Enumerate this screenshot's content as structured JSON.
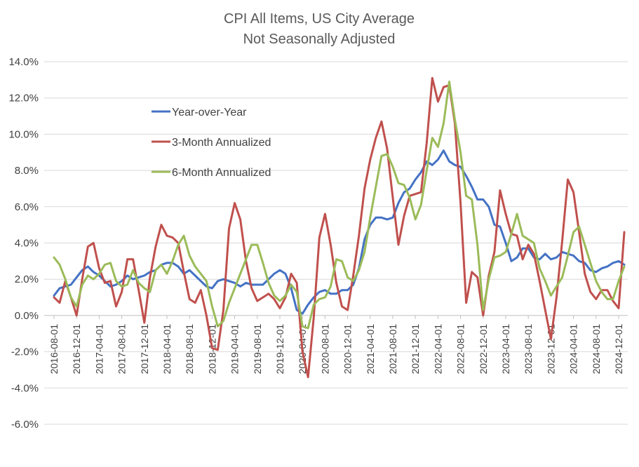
{
  "chart_data": {
    "type": "line",
    "title": "CPI All Items, US City Average",
    "subtitle": "Not Seasonally Adjusted",
    "xlabel": "",
    "ylabel": "",
    "ylim": [
      -6,
      14
    ],
    "yticks": [
      14,
      12,
      10,
      8,
      6,
      4,
      2,
      0,
      -2,
      -4,
      -6
    ],
    "ytick_labels": [
      "14.0%",
      "12.0%",
      "10.0%",
      "8.0%",
      "6.0%",
      "4.0%",
      "2.0%",
      "0.0%",
      "-2.0%",
      "-4.0%",
      "-6.0%"
    ],
    "x_start": "2016-08-01",
    "x_end": "2025-01-01",
    "x_tick_labels": [
      "2016-08-01",
      "2016-12-01",
      "2017-04-01",
      "2017-08-01",
      "2017-12-01",
      "2018-04-01",
      "2018-08-01",
      "2018-12-01",
      "2019-04-01",
      "2019-08-01",
      "2019-12-01",
      "2020-04-01",
      "2020-08-01",
      "2020-12-01",
      "2021-04-01",
      "2021-08-01",
      "2021-12-01",
      "2022-04-01",
      "2022-08-01",
      "2022-12-01",
      "2023-04-01",
      "2023-08-01",
      "2023-12-01",
      "2024-04-01",
      "2024-08-01",
      "2024-12-01"
    ],
    "legend_position": "upper-left",
    "grid": true,
    "series": [
      {
        "name": "Year-over-Year",
        "color": "#4472c4",
        "values": [
          1.1,
          1.5,
          1.6,
          1.7,
          2.1,
          2.5,
          2.7,
          2.4,
          2.2,
          1.9,
          1.6,
          1.7,
          1.9,
          2.2,
          2.0,
          2.1,
          2.2,
          2.4,
          2.5,
          2.8,
          2.9,
          2.9,
          2.7,
          2.3,
          2.5,
          2.2,
          1.9,
          1.6,
          1.5,
          1.9,
          2.0,
          1.9,
          1.8,
          1.6,
          1.8,
          1.7,
          1.7,
          1.7,
          2.0,
          2.3,
          2.5,
          2.3,
          1.5,
          0.3,
          0.1,
          0.6,
          1.0,
          1.3,
          1.4,
          1.2,
          1.2,
          1.4,
          1.4,
          1.7,
          2.6,
          4.2,
          5.0,
          5.4,
          5.4,
          5.3,
          5.4,
          6.2,
          6.8,
          7.0,
          7.5,
          7.9,
          8.5,
          8.3,
          8.6,
          9.1,
          8.5,
          8.3,
          8.2,
          7.7,
          7.1,
          6.4,
          6.4,
          6.0,
          5.0,
          4.9,
          4.0,
          3.0,
          3.2,
          3.7,
          3.7,
          3.2,
          3.1,
          3.4,
          3.1,
          3.2,
          3.5,
          3.4,
          3.3,
          3.0,
          2.9,
          2.5,
          2.4,
          2.6,
          2.7,
          2.9,
          3.0,
          2.8
        ]
      },
      {
        "name": "3-Month Annualized",
        "color": "#c0504d",
        "values": [
          1.0,
          0.7,
          1.9,
          1.0,
          0.0,
          2.0,
          3.8,
          4.0,
          2.6,
          1.8,
          1.9,
          0.5,
          1.3,
          3.1,
          3.1,
          1.4,
          -0.4,
          2.1,
          3.8,
          5.0,
          4.4,
          4.3,
          4.0,
          2.4,
          0.9,
          0.7,
          1.4,
          0.0,
          -1.8,
          -1.9,
          0.3,
          4.8,
          6.2,
          5.3,
          3.0,
          1.5,
          0.8,
          1.0,
          1.2,
          0.9,
          0.4,
          1.0,
          2.3,
          1.8,
          -2.0,
          -3.4,
          -0.1,
          4.3,
          5.6,
          3.9,
          1.8,
          0.5,
          0.3,
          2.2,
          4.4,
          7.0,
          8.6,
          9.8,
          10.7,
          9.2,
          6.5,
          3.9,
          5.5,
          6.6,
          6.7,
          6.8,
          9.5,
          13.1,
          11.8,
          12.6,
          12.7,
          10.6,
          6.2,
          0.7,
          2.4,
          2.1,
          0.0,
          2.2,
          3.5,
          6.9,
          5.6,
          4.5,
          4.4,
          3.1,
          3.9,
          3.4,
          1.9,
          0.3,
          -1.3,
          1.0,
          4.1,
          7.5,
          6.8,
          4.6,
          2.3,
          1.3,
          0.9,
          1.4,
          1.4,
          0.8,
          0.4,
          4.6
        ]
      },
      {
        "name": "6-Month Annualized",
        "color": "#9bbb59",
        "values": [
          3.2,
          2.8,
          2.0,
          1.0,
          0.5,
          1.7,
          2.2,
          2.0,
          2.3,
          2.8,
          2.9,
          1.9,
          1.6,
          1.7,
          2.5,
          1.8,
          1.5,
          1.3,
          2.5,
          2.8,
          2.3,
          3.0,
          3.9,
          4.4,
          3.3,
          2.7,
          2.3,
          1.9,
          0.5,
          -0.6,
          -0.3,
          0.7,
          1.5,
          2.3,
          3.1,
          3.9,
          3.9,
          2.9,
          1.8,
          1.1,
          0.8,
          1.1,
          1.7,
          1.3,
          -0.6,
          -0.7,
          0.6,
          0.9,
          1.0,
          1.6,
          3.1,
          3.0,
          2.1,
          1.9,
          2.5,
          3.5,
          5.4,
          7.1,
          8.8,
          8.9,
          8.2,
          7.3,
          7.2,
          6.5,
          5.3,
          6.1,
          8.0,
          9.8,
          9.3,
          10.6,
          12.9,
          10.8,
          9.0,
          6.6,
          6.4,
          3.9,
          0.3,
          2.0,
          3.2,
          3.3,
          3.5,
          4.5,
          5.6,
          4.4,
          4.2,
          4.0,
          2.6,
          1.9,
          1.1,
          1.6,
          2.1,
          3.3,
          4.6,
          4.9,
          3.9,
          2.9,
          1.9,
          1.3,
          0.9,
          0.9,
          1.9,
          2.7
        ]
      }
    ]
  }
}
